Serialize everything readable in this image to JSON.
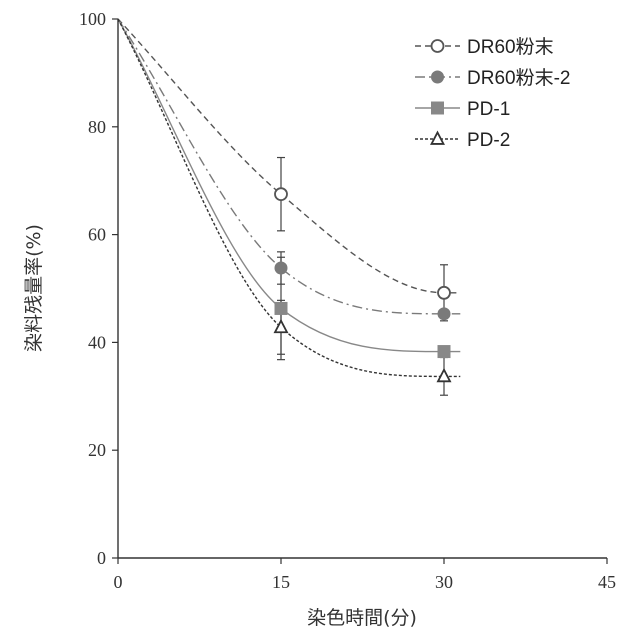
{
  "chart_data": {
    "type": "line",
    "xlabel": "染色時間(分)",
    "ylabel": "染料残量率(%)",
    "xlim": [
      0,
      45
    ],
    "ylim": [
      0,
      100
    ],
    "xticks": [
      "0",
      "15",
      "30",
      "45"
    ],
    "yticks": [
      "0",
      "20",
      "40",
      "60",
      "80",
      "100"
    ],
    "grid": false,
    "legend_position": "top-right",
    "x": [
      0,
      15,
      30
    ],
    "series": [
      {
        "name": "DR60粉末",
        "values": [
          100,
          67.5,
          49.2
        ],
        "error": [
          0,
          6.8,
          5.2
        ],
        "marker": "open-circle",
        "line_style": "dashed",
        "color": "#555555"
      },
      {
        "name": "DR60粉末-2",
        "values": [
          100,
          53.8,
          45.3
        ],
        "error": [
          0,
          3.0,
          0
        ],
        "marker": "filled-circle",
        "line_style": "dash-dot",
        "color": "#7a7a7a"
      },
      {
        "name": "PD-1",
        "values": [
          100,
          46.3,
          38.3
        ],
        "error": [
          0,
          9.5,
          0
        ],
        "marker": "filled-square",
        "line_style": "solid",
        "color": "#888888"
      },
      {
        "name": "PD-2",
        "values": [
          100,
          42.8,
          33.7
        ],
        "error": [
          0,
          5.0,
          3.5
        ],
        "marker": "open-triangle",
        "line_style": "dotted",
        "color": "#333333"
      }
    ]
  }
}
